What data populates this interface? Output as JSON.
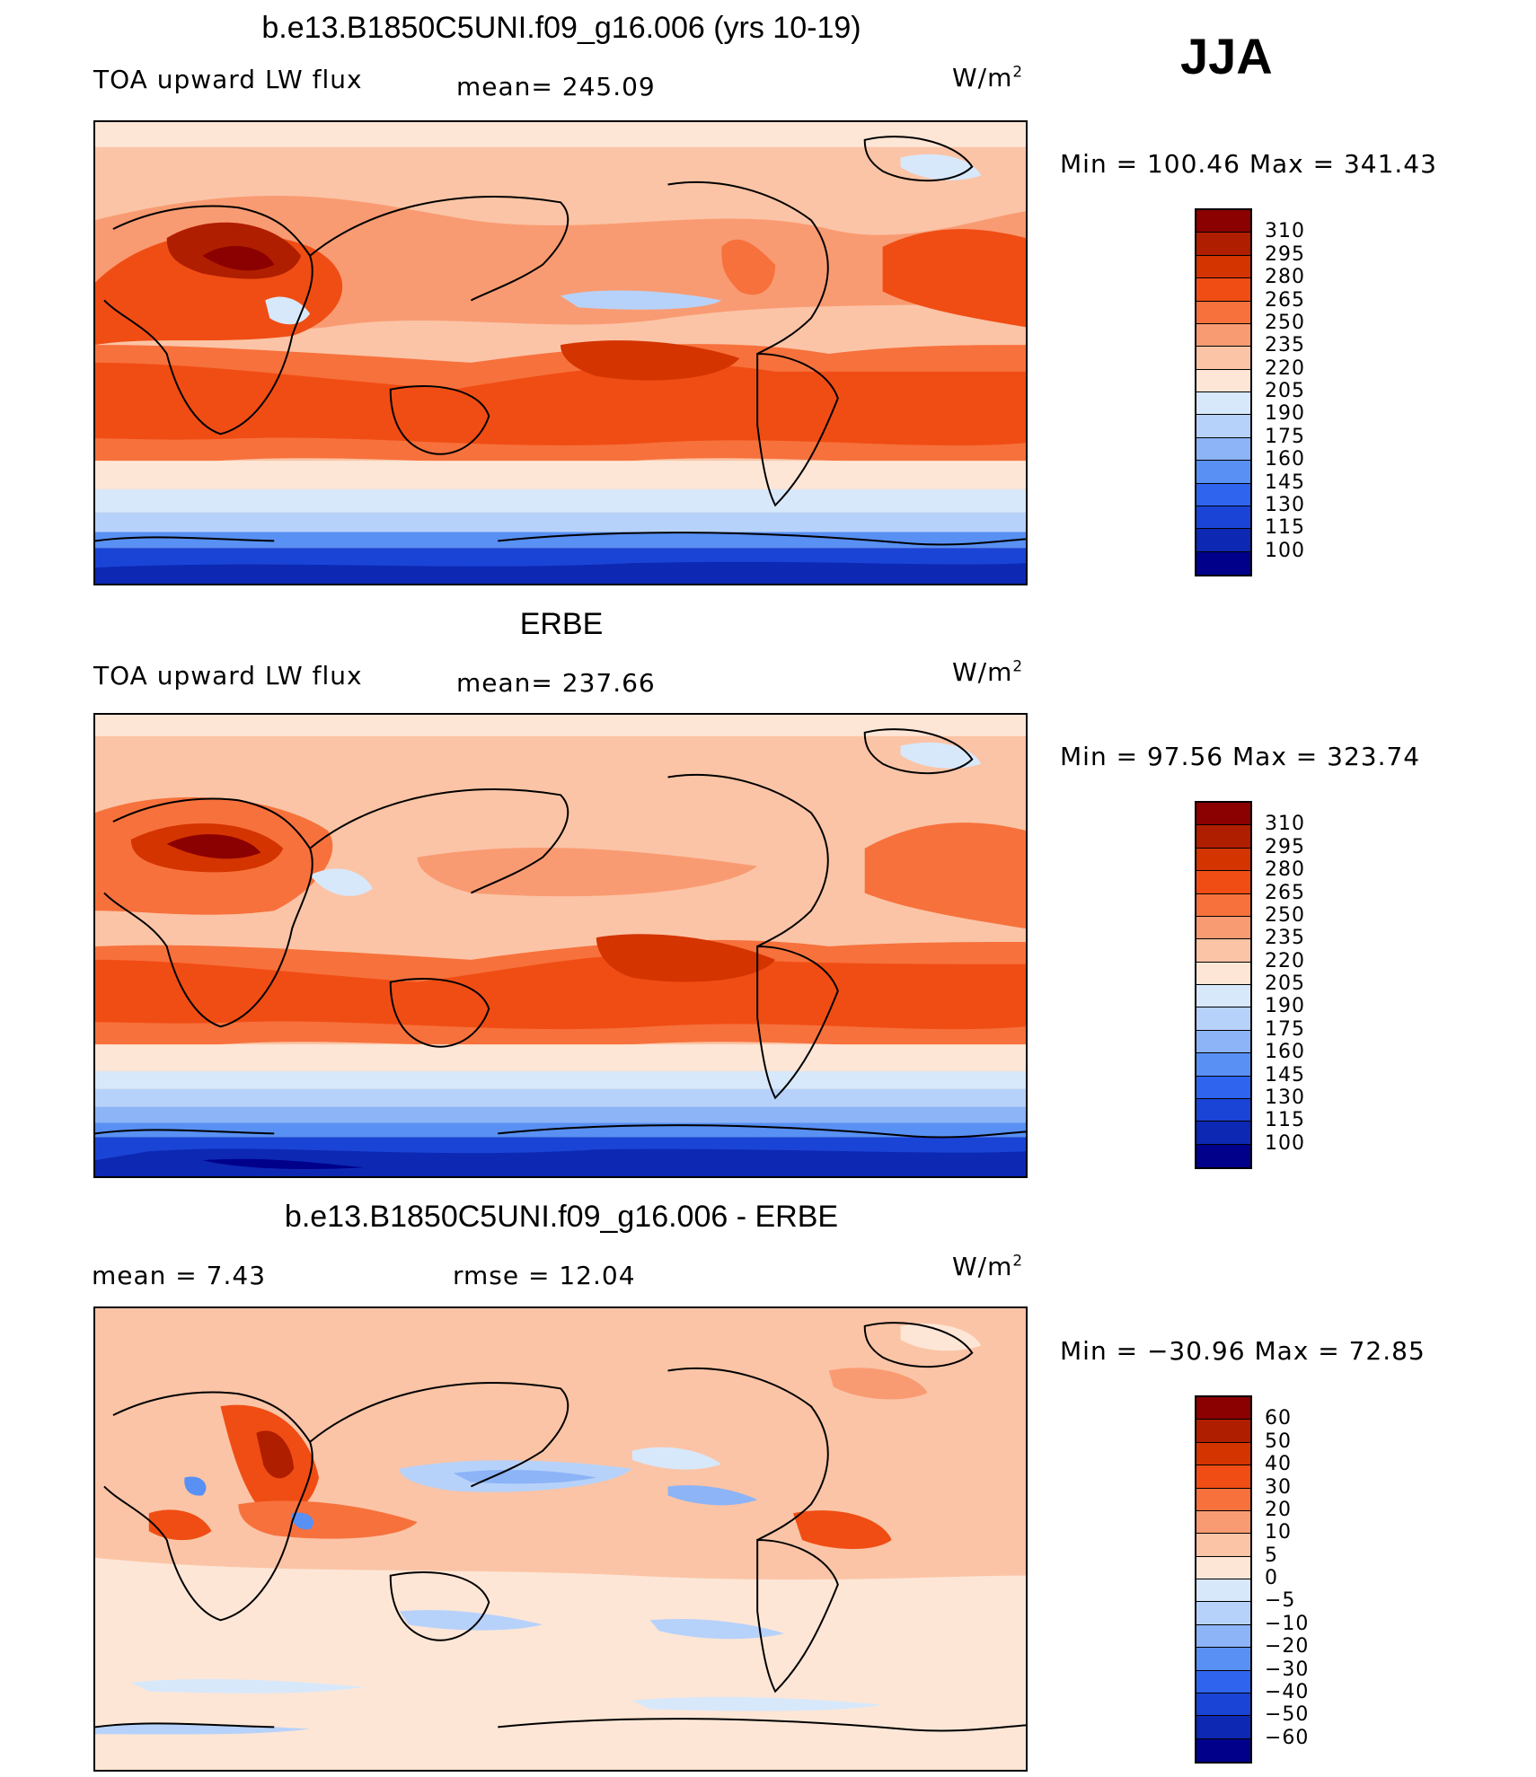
{
  "season": "JJA",
  "panels": [
    {
      "title": "b.e13.B1850C5UNI.f09_g16.006 (yrs 10-19)",
      "left_label": "TOA upward LW flux",
      "center_label": "mean= 245.09",
      "units": "W/m",
      "units_exp": "2",
      "minmax": "Min =  100.46 Max =  341.43",
      "colorbar": {
        "colors": [
          "#8b0000",
          "#b01e00",
          "#d43400",
          "#f04d14",
          "#f7713c",
          "#f99b72",
          "#fbc4a6",
          "#fde6d6",
          "#d7e8fb",
          "#b7d2fa",
          "#8cb4f7",
          "#5890f3",
          "#2e64ee",
          "#1a44d6",
          "#0d28b3",
          "#00008b"
        ],
        "labels": [
          "310",
          "295",
          "280",
          "265",
          "250",
          "235",
          "220",
          "205",
          "190",
          "175",
          "160",
          "145",
          "130",
          "115",
          "100"
        ]
      }
    },
    {
      "title": "ERBE",
      "left_label": "TOA upward LW flux",
      "center_label": "mean= 237.66",
      "units": "W/m",
      "units_exp": "2",
      "minmax": "Min =   97.56 Max =  323.74",
      "colorbar": {
        "colors": [
          "#8b0000",
          "#b01e00",
          "#d43400",
          "#f04d14",
          "#f7713c",
          "#f99b72",
          "#fbc4a6",
          "#fde6d6",
          "#d7e8fb",
          "#b7d2fa",
          "#8cb4f7",
          "#5890f3",
          "#2e64ee",
          "#1a44d6",
          "#0d28b3",
          "#00008b"
        ],
        "labels": [
          "310",
          "295",
          "280",
          "265",
          "250",
          "235",
          "220",
          "205",
          "190",
          "175",
          "160",
          "145",
          "130",
          "115",
          "100"
        ]
      }
    },
    {
      "title": "b.e13.B1850C5UNI.f09_g16.006 - ERBE",
      "left_label": "mean =    7.43",
      "center_label": "rmse =   12.04",
      "units": "W/m",
      "units_exp": "2",
      "minmax": "Min = −30.96 Max =   72.85",
      "colorbar": {
        "colors": [
          "#8b0000",
          "#b01e00",
          "#d43400",
          "#f04d14",
          "#f7713c",
          "#f99b72",
          "#fbc4a6",
          "#fde6d6",
          "#d7e8fb",
          "#b7d2fa",
          "#8cb4f7",
          "#5890f3",
          "#2e64ee",
          "#1a44d6",
          "#0d28b3",
          "#00008b"
        ],
        "labels": [
          "60",
          "50",
          "40",
          "30",
          "20",
          "10",
          "5",
          "0",
          "−5",
          "−10",
          "−20",
          "−30",
          "−40",
          "−50",
          "−60"
        ]
      }
    }
  ]
}
